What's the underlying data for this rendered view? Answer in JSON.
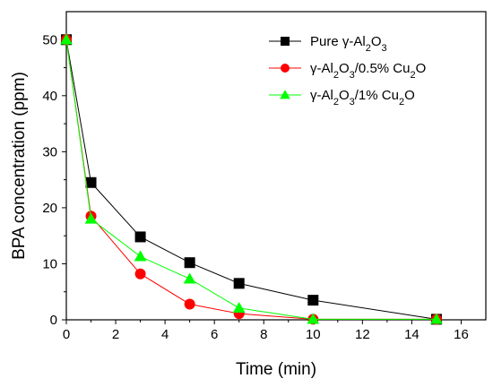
{
  "chart_data": {
    "type": "line",
    "xlabel": "Time (min)",
    "ylabel": "BPA concentration (ppm)",
    "xlim": [
      0,
      17
    ],
    "ylim": [
      0,
      55
    ],
    "xticks": [
      0,
      2,
      4,
      6,
      8,
      10,
      12,
      14,
      16
    ],
    "yticks": [
      0,
      10,
      20,
      30,
      40,
      50
    ],
    "grid": false,
    "legend_position": "top-right",
    "series": [
      {
        "name": "Pure γ-Al2O3",
        "color": "#000000",
        "marker": "square",
        "x": [
          0,
          1,
          3,
          5,
          7,
          10,
          15
        ],
        "y": [
          50,
          24.5,
          14.8,
          10.2,
          6.5,
          3.5,
          0.1
        ]
      },
      {
        "name": "γ-Al2O3/0.5% Cu2O",
        "color": "#ff0000",
        "marker": "circle",
        "x": [
          0,
          1,
          3,
          5,
          7,
          10,
          15
        ],
        "y": [
          50,
          18.5,
          8.2,
          2.8,
          1.1,
          0.1,
          0.1
        ]
      },
      {
        "name": "γ-Al2O3/1% Cu2O",
        "color": "#00ff00",
        "marker": "triangle",
        "x": [
          0,
          1,
          3,
          5,
          7,
          10,
          15
        ],
        "y": [
          50,
          18.0,
          11.3,
          7.3,
          2.1,
          0.1,
          0.1
        ]
      }
    ]
  }
}
